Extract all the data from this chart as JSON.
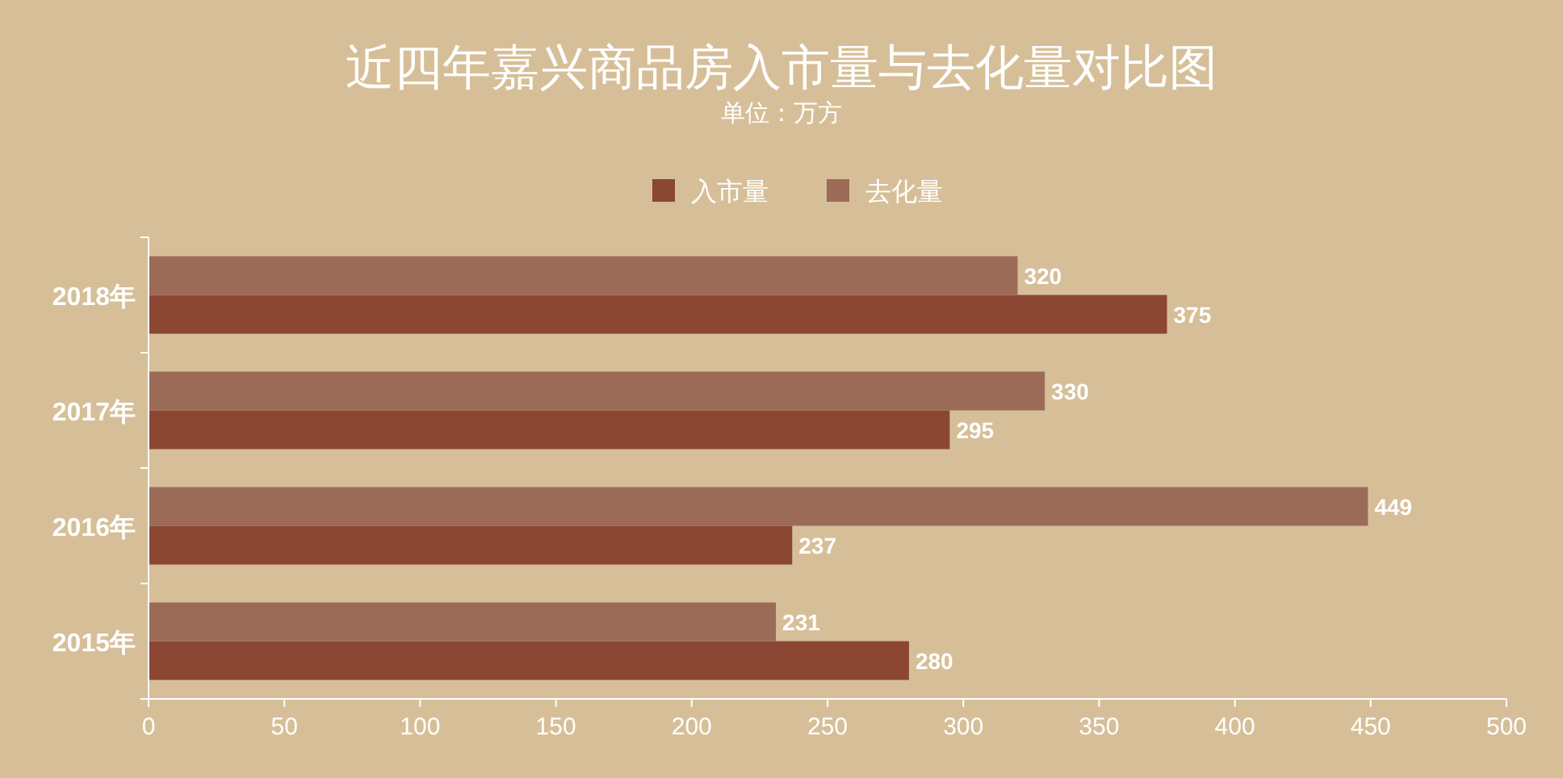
{
  "chart_data": {
    "type": "bar",
    "orientation": "horizontal",
    "title": "近四年嘉兴商品房入市量与去化量对比图",
    "subtitle": "单位：万方",
    "categories": [
      "2018年",
      "2017年",
      "2016年",
      "2015年"
    ],
    "series": [
      {
        "name": "入市量",
        "color": "#8c4634",
        "values": [
          375,
          295,
          237,
          280
        ]
      },
      {
        "name": "去化量",
        "color": "#9b6b58",
        "values": [
          320,
          330,
          449,
          231
        ]
      }
    ],
    "xlim": [
      0,
      500
    ],
    "xticks": [
      0,
      50,
      100,
      150,
      200,
      250,
      300,
      350,
      400,
      450,
      500
    ],
    "data_labels": true,
    "legend": "top"
  }
}
